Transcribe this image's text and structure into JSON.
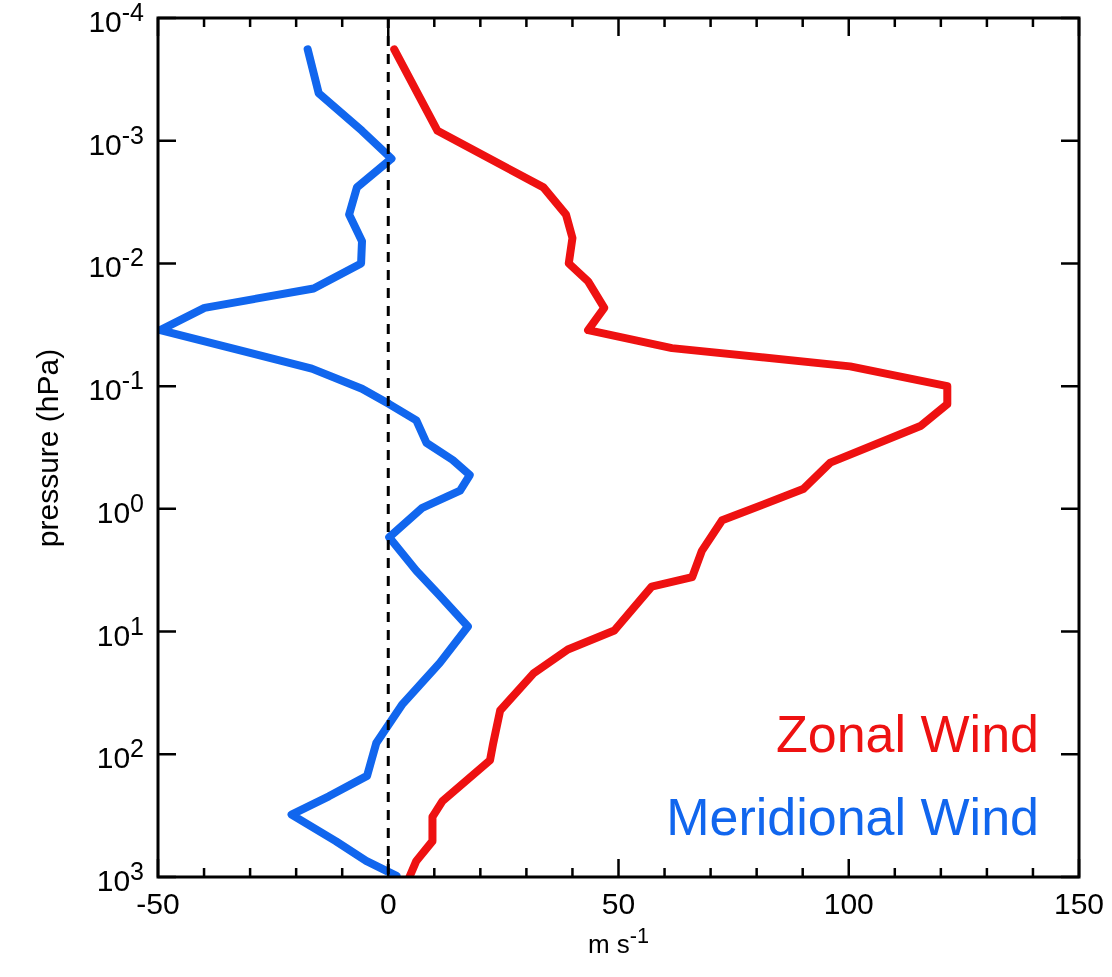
{
  "chart_data": {
    "type": "line",
    "xlabel": "m s$^{-1}$",
    "ylabel": "pressure (hPa)",
    "log": "y",
    "legend": "bottom right",
    "line_style": "solid",
    "xlim": [
      -50,
      150
    ],
    "xticks": [
      -50,
      {
        "value": -40,
        "label": null
      },
      {
        "value": -30,
        "label": null
      },
      {
        "value": -20,
        "label": null
      },
      {
        "value": -10,
        "label": null
      },
      0,
      {
        "value": 10,
        "label": null
      },
      {
        "value": 20,
        "label": null
      },
      {
        "value": 30,
        "label": null
      },
      {
        "value": 40,
        "label": null
      },
      50,
      {
        "value": 60,
        "label": null
      },
      {
        "value": 70,
        "label": null
      },
      {
        "value": 80,
        "label": null
      },
      {
        "value": 90,
        "label": null
      },
      100,
      {
        "value": 110,
        "label": null
      },
      {
        "value": 120,
        "label": null
      },
      {
        "value": 130,
        "label": null
      },
      {
        "value": 140,
        "label": null
      },
      150
    ],
    "ylim": [
      1000,
      0.0001
    ],
    "yticks": [
      {
        "value": 0.0001,
        "label": "10$^{-4}$"
      },
      {
        "value": 0.001,
        "label": "10$^{-3}$"
      },
      {
        "value": 0.01,
        "label": "10$^{-2}$"
      },
      {
        "value": 0.1,
        "label": "10$^{-1}$"
      },
      {
        "value": 1,
        "label": "10$^{0}$"
      },
      {
        "value": 10,
        "label": "10$^{1}$"
      },
      {
        "value": 100,
        "label": "10$^{2}$"
      },
      {
        "value": 1000,
        "label": "10$^{3}$"
      }
    ],
    "ref_lines": [
      {
        "axis": "x",
        "value": 0,
        "color": "#000000",
        "line_style": "dashed"
      }
    ],
    "series": [
      {
        "name": "Zonal Wind",
        "color": "#ee1111",
        "x": [
          1.3,
          10.7,
          33.7,
          38.6,
          40,
          39.2,
          43.4,
          46.9,
          43.4,
          61.6,
          100.3,
          121.4,
          121.4,
          115.7,
          96,
          90.1,
          72.5,
          68.1,
          66,
          57.2,
          49.1,
          39,
          31.5,
          24.3,
          22.8,
          22.1,
          11.8,
          9.6,
          9.6,
          6.1,
          4.6
        ],
        "values": [
          0.00018,
          0.00083,
          0.0024,
          0.004,
          0.0062,
          0.01,
          0.014,
          0.023,
          0.035,
          0.049,
          0.069,
          0.1,
          0.14,
          0.21,
          0.42,
          0.69,
          1.24,
          2.2,
          3.6,
          4.3,
          9.8,
          14,
          22,
          44,
          81,
          112,
          240,
          324,
          510,
          740,
          1000
        ]
      },
      {
        "name": "Meridional Wind",
        "color": "#1166ee",
        "x": [
          -17.5,
          -15.1,
          -5.7,
          0.7,
          -6.8,
          -8.5,
          -5.7,
          -5.9,
          -16.2,
          -39.9,
          -49.5,
          -16.6,
          -5.7,
          0.2,
          6.1,
          8.3,
          14,
          17.7,
          15.6,
          7.4,
          0.2,
          6.1,
          11.2,
          17.3,
          11.2,
          3.1,
          -2.6,
          -4.6,
          -12.9,
          -21,
          -11.4,
          -4.8,
          1.8
        ],
        "values": [
          0.00018,
          0.00041,
          0.00083,
          0.0014,
          0.0024,
          0.004,
          0.0066,
          0.01,
          0.016,
          0.023,
          0.035,
          0.072,
          0.105,
          0.14,
          0.19,
          0.29,
          0.4,
          0.53,
          0.71,
          0.98,
          1.7,
          3.2,
          5.1,
          9.1,
          18,
          39,
          81,
          150,
          220,
          310,
          510,
          740,
          980
        ]
      }
    ]
  }
}
